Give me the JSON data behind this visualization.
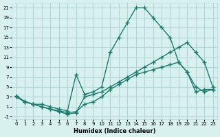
{
  "xlabel": "Humidex (Indice chaleur)",
  "ylabel": "",
  "bg_color": "#d8f0ee",
  "grid_color": "#b0d8d4",
  "line_color": "#1a7a6e",
  "xlim": [
    -0.5,
    23.5
  ],
  "ylim": [
    -1.5,
    22
  ],
  "xticks": [
    0,
    1,
    2,
    3,
    4,
    5,
    6,
    7,
    8,
    9,
    10,
    11,
    12,
    13,
    14,
    15,
    16,
    17,
    18,
    19,
    20,
    21,
    22,
    23
  ],
  "yticks": [
    -1,
    1,
    3,
    5,
    7,
    9,
    11,
    13,
    15,
    17,
    19,
    21
  ],
  "line1_x": [
    0,
    1,
    2,
    3,
    4,
    5,
    6,
    7,
    8,
    9,
    10,
    11,
    12,
    13,
    14,
    15,
    16,
    17,
    18,
    19,
    20,
    21,
    22,
    23
  ],
  "line1_y": [
    3,
    2,
    1.5,
    1,
    0.5,
    0,
    -0.5,
    -0.2,
    3,
    3.5,
    4,
    5,
    6,
    7,
    8,
    9,
    10,
    11,
    12,
    13,
    14,
    12,
    10,
    5
  ],
  "line2_x": [
    0,
    1,
    2,
    3,
    4,
    5,
    6,
    7,
    8,
    9,
    10,
    11,
    12,
    13,
    14,
    15,
    16,
    17,
    18,
    19,
    20,
    21,
    22,
    23
  ],
  "line2_y": [
    3,
    2,
    1.5,
    1.5,
    1,
    0.5,
    0.2,
    7.5,
    3.5,
    4,
    5,
    12,
    15,
    18,
    21,
    21,
    19,
    17,
    15,
    10,
    8,
    4,
    4.5,
    4.5
  ],
  "line3_x": [
    0,
    1,
    2,
    3,
    4,
    5,
    6,
    7,
    8,
    9,
    10,
    11,
    12,
    13,
    14,
    15,
    16,
    17,
    18,
    19,
    20,
    21,
    22,
    23
  ],
  "line3_y": [
    3.2,
    2.1,
    1.5,
    1.0,
    0.5,
    0.2,
    -0.2,
    0,
    1.5,
    2,
    3,
    4.5,
    5.5,
    6.5,
    7.5,
    8,
    8.5,
    9,
    9.5,
    10,
    8,
    5,
    4,
    4.5
  ]
}
